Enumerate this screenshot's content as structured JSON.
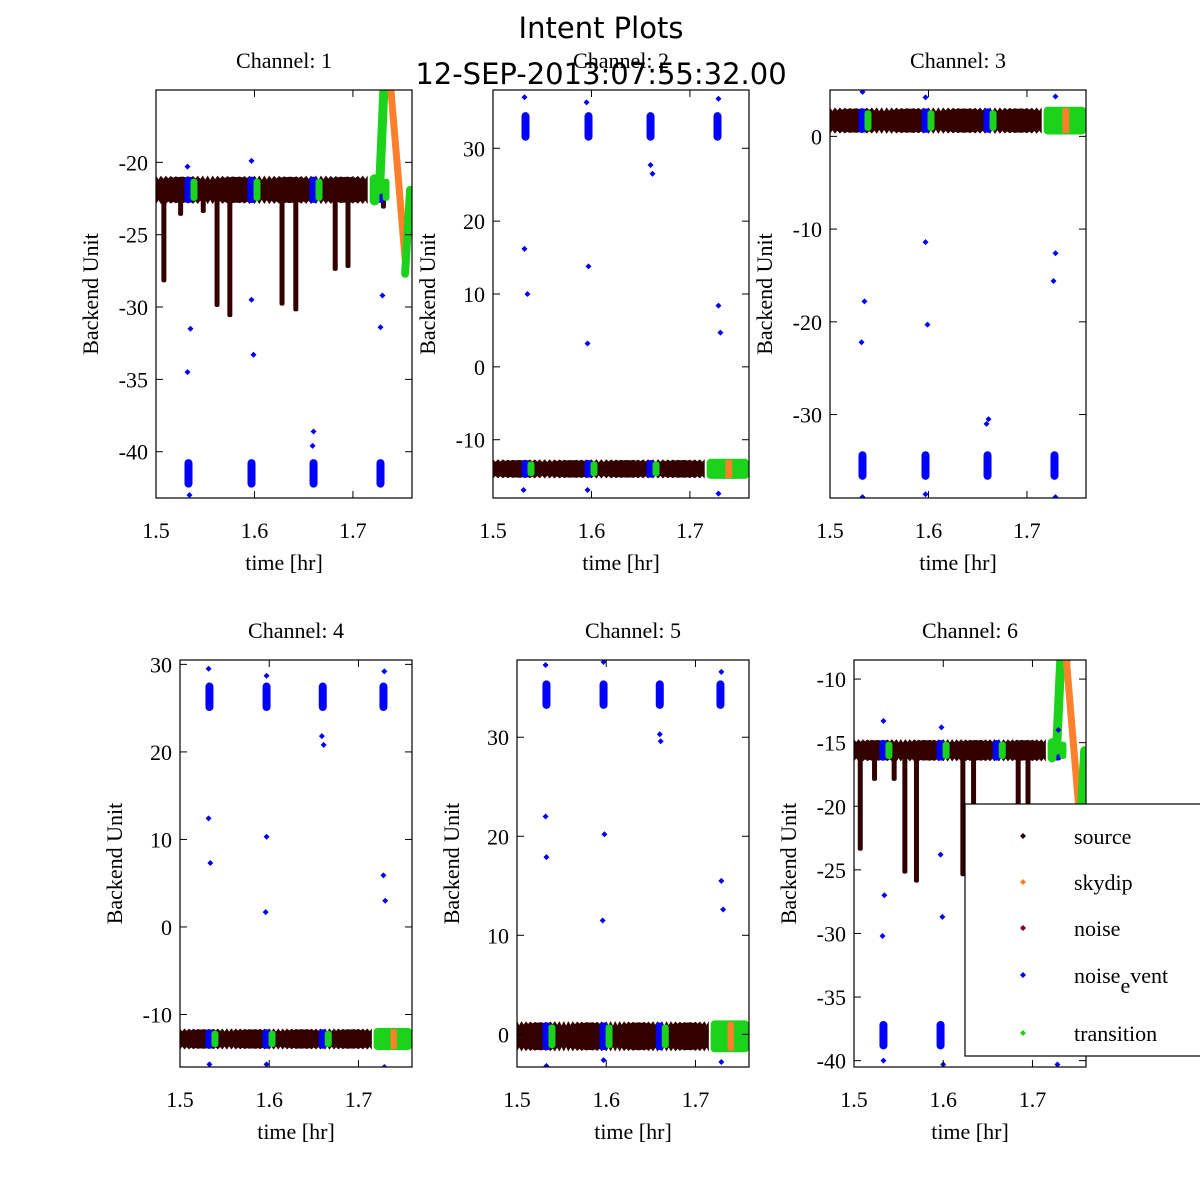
{
  "chart_data": {
    "type": "scatter",
    "title": "Intent Plots",
    "subtitle": "12-SEP-2013:07:55:32.00",
    "xlabel": "time [hr]",
    "ylabel": "Backend Unit",
    "legend": {
      "placement": "bottom-right",
      "entries": [
        {
          "name": "source",
          "label": "source",
          "color": "#330000"
        },
        {
          "name": "skydip",
          "label": "skydip",
          "color": "#ff7f2a"
        },
        {
          "name": "noise",
          "label": "noise",
          "color": "#800020"
        },
        {
          "name": "noise_event",
          "label": "noise",
          "label_sub": "e",
          "label_rest": "vent",
          "color": "#0000ff"
        },
        {
          "name": "transition",
          "label": "transition",
          "color": "#1ad31a"
        }
      ]
    },
    "shared": {
      "xlim": [
        1.5,
        1.76
      ],
      "xticks": [
        1.5,
        1.6,
        1.7
      ],
      "xtick_labels": [
        "1.5",
        "1.6",
        "1.7"
      ],
      "noise_event_times": [
        1.533,
        1.597,
        1.66,
        1.728
      ],
      "transition_start": 1.717,
      "skydip_window": [
        1.736,
        1.757
      ]
    },
    "panels": [
      {
        "title": "Channel: 1",
        "ylim": [
          -43.2,
          -15.0
        ],
        "yticks": [
          -20,
          -25,
          -30,
          -35,
          -40
        ],
        "ytick_labels": [
          "-20",
          "-25",
          "-30",
          "-35",
          "-40"
        ],
        "baseline": -21.9,
        "band": 0.9,
        "noise_event_level": -41.5,
        "dips": [
          [
            1.508,
            -28.3
          ],
          [
            1.525,
            -23.7
          ],
          [
            1.548,
            -23.5
          ],
          [
            1.562,
            -30.0
          ],
          [
            1.575,
            -30.7
          ],
          [
            1.628,
            -29.9
          ],
          [
            1.642,
            -30.3
          ],
          [
            1.682,
            -27.5
          ],
          [
            1.695,
            -27.3
          ],
          [
            1.731,
            -23.2
          ]
        ],
        "outliers": [
          [
            1.532,
            -34.5
          ],
          [
            1.535,
            -31.5
          ],
          [
            1.597,
            -29.5
          ],
          [
            1.599,
            -33.3
          ],
          [
            1.66,
            -38.6
          ],
          [
            1.659,
            -39.6
          ],
          [
            1.728,
            -31.4
          ],
          [
            1.73,
            -29.2
          ],
          [
            1.532,
            -20.3
          ],
          [
            1.597,
            -19.9
          ],
          [
            1.534,
            -43.0
          ],
          [
            1.6,
            -43.4
          ]
        ],
        "skydip_peak": -14.5,
        "skydip_min": -27.7,
        "style": "skydip-bump"
      },
      {
        "title": "Channel: 2",
        "ylim": [
          -18.0,
          38.0
        ],
        "yticks": [
          30,
          20,
          10,
          0,
          -10
        ],
        "ytick_labels": [
          "30",
          "20",
          "10",
          "0",
          "-10"
        ],
        "baseline": -14.0,
        "band": 1.2,
        "noise_event_level": 33.0,
        "dips": [],
        "outliers": [
          [
            1.532,
            16.2
          ],
          [
            1.535,
            10.0
          ],
          [
            1.597,
            13.8
          ],
          [
            1.596,
            3.2
          ],
          [
            1.66,
            27.7
          ],
          [
            1.662,
            26.5
          ],
          [
            1.729,
            8.4
          ],
          [
            1.731,
            4.7
          ],
          [
            1.532,
            37.0
          ],
          [
            1.595,
            36.3
          ],
          [
            1.729,
            36.8
          ],
          [
            1.531,
            -16.9
          ],
          [
            1.596,
            -16.9
          ],
          [
            1.729,
            -17.4
          ]
        ],
        "style": "flat"
      },
      {
        "title": "Channel: 3",
        "ylim": [
          -39.0,
          5.0
        ],
        "yticks": [
          0,
          -10,
          -20,
          -30
        ],
        "ytick_labels": [
          "0",
          "-10",
          "-20",
          "-30"
        ],
        "baseline": 1.7,
        "band": 1.3,
        "noise_event_level": -35.5,
        "dips": [],
        "outliers": [
          [
            1.532,
            -22.2
          ],
          [
            1.535,
            -17.8
          ],
          [
            1.597,
            -11.4
          ],
          [
            1.599,
            -20.3
          ],
          [
            1.661,
            -30.5
          ],
          [
            1.659,
            -31.0
          ],
          [
            1.729,
            -12.6
          ],
          [
            1.727,
            -15.6
          ],
          [
            1.533,
            4.8
          ],
          [
            1.597,
            4.2
          ],
          [
            1.729,
            4.3
          ],
          [
            1.533,
            -38.9
          ],
          [
            1.597,
            -38.6
          ],
          [
            1.729,
            -38.9
          ]
        ],
        "style": "flat"
      },
      {
        "title": "Channel: 4",
        "ylim": [
          -16.0,
          30.5
        ],
        "yticks": [
          30,
          20,
          10,
          0,
          -10
        ],
        "ytick_labels": [
          "30",
          "20",
          "10",
          "0",
          "-10"
        ],
        "baseline": -12.8,
        "band": 1.1,
        "noise_event_level": 26.3,
        "dips": [],
        "outliers": [
          [
            1.532,
            12.4
          ],
          [
            1.534,
            7.3
          ],
          [
            1.597,
            10.3
          ],
          [
            1.596,
            1.7
          ],
          [
            1.659,
            21.8
          ],
          [
            1.661,
            20.8
          ],
          [
            1.728,
            5.9
          ],
          [
            1.73,
            3.0
          ],
          [
            1.532,
            29.5
          ],
          [
            1.597,
            28.7
          ],
          [
            1.729,
            29.2
          ],
          [
            1.533,
            -15.7
          ],
          [
            1.597,
            -15.7
          ],
          [
            1.729,
            -16.0
          ]
        ],
        "style": "flat"
      },
      {
        "title": "Channel: 5",
        "ylim": [
          -3.3,
          37.8
        ],
        "yticks": [
          30,
          20,
          10,
          0
        ],
        "ytick_labels": [
          "30",
          "20",
          "10",
          "0"
        ],
        "baseline": -0.2,
        "band": 1.4,
        "noise_event_level": 34.3,
        "dips": [],
        "outliers": [
          [
            1.532,
            22.0
          ],
          [
            1.533,
            17.9
          ],
          [
            1.598,
            20.2
          ],
          [
            1.596,
            11.5
          ],
          [
            1.66,
            30.3
          ],
          [
            1.661,
            29.6
          ],
          [
            1.729,
            15.5
          ],
          [
            1.731,
            12.6
          ],
          [
            1.532,
            37.3
          ],
          [
            1.597,
            37.6
          ],
          [
            1.729,
            36.6
          ],
          [
            1.533,
            -3.2
          ],
          [
            1.597,
            -2.6
          ],
          [
            1.729,
            -2.8
          ]
        ],
        "style": "flat"
      },
      {
        "title": "Channel: 6",
        "ylim": [
          -40.5,
          -8.5
        ],
        "yticks": [
          -10,
          -15,
          -20,
          -25,
          -30,
          -35,
          -40
        ],
        "ytick_labels": [
          "-10",
          "-15",
          "-20",
          "-25",
          "-30",
          "-35",
          "-40"
        ],
        "baseline": -15.6,
        "band": 0.8,
        "noise_event_level": -38.0,
        "dips": [
          [
            1.507,
            -23.5
          ],
          [
            1.523,
            -18.0
          ],
          [
            1.545,
            -18.0
          ],
          [
            1.557,
            -25.3
          ],
          [
            1.57,
            -26.0
          ],
          [
            1.622,
            -25.5
          ],
          [
            1.634,
            -24.0
          ],
          [
            1.684,
            -24.0
          ],
          [
            1.695,
            -24.0
          ]
        ],
        "outliers": [
          [
            1.532,
            -30.2
          ],
          [
            1.534,
            -27.0
          ],
          [
            1.597,
            -23.8
          ],
          [
            1.599,
            -28.7
          ],
          [
            1.533,
            -13.3
          ],
          [
            1.598,
            -13.8
          ],
          [
            1.533,
            -40.0
          ],
          [
            1.6,
            -40.3
          ],
          [
            1.728,
            -40.3
          ],
          [
            1.729,
            -14.0
          ]
        ],
        "skydip_peak": -8.5,
        "skydip_min": -22.0,
        "style": "skydip-bump"
      }
    ]
  }
}
